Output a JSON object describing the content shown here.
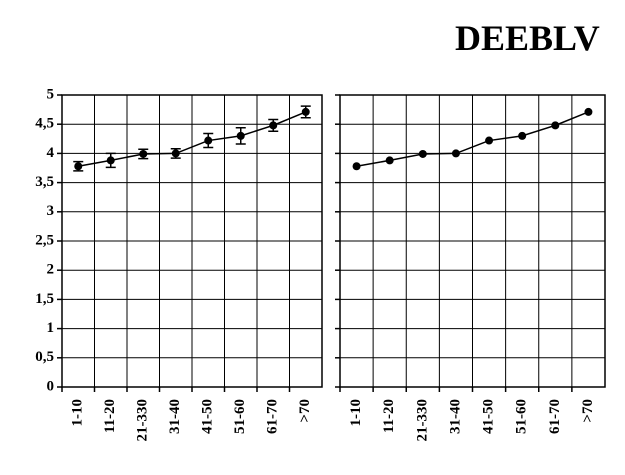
{
  "title": "DEEBLV",
  "chart_data": [
    {
      "type": "line",
      "categories": [
        "1-10",
        "11-20",
        "21-330",
        "31-40",
        "41-50",
        "51-60",
        "61-70",
        ">70"
      ],
      "values": [
        3.78,
        3.88,
        3.99,
        4.0,
        4.22,
        4.3,
        4.48,
        4.71
      ],
      "errors": [
        0.08,
        0.12,
        0.08,
        0.08,
        0.12,
        0.14,
        0.1,
        0.1
      ],
      "color": "#000000",
      "ylim": [
        0,
        5
      ],
      "yticks": [
        0,
        {
          "value": 0.5,
          "label": "0,5"
        },
        1,
        {
          "value": 1.5,
          "label": "1,5"
        },
        2,
        {
          "value": 2.5,
          "label": "2,5"
        },
        3,
        {
          "value": 3.5,
          "label": "3,5"
        },
        4,
        {
          "value": 4.5,
          "label": "4,5"
        },
        5
      ],
      "grid": true
    },
    {
      "type": "line",
      "categories": [
        "1-10",
        "11-20",
        "21-330",
        "31-40",
        "41-50",
        "51-60",
        "61-70",
        ">70"
      ],
      "values": [
        3.78,
        3.88,
        3.99,
        4.0,
        4.22,
        4.3,
        4.48,
        4.71
      ],
      "color": "#000000",
      "ylim": [
        0,
        5
      ],
      "yticks": [
        0,
        0.5,
        1,
        1.5,
        2,
        2.5,
        3,
        3.5,
        4,
        4.5,
        5
      ],
      "grid": true
    }
  ]
}
